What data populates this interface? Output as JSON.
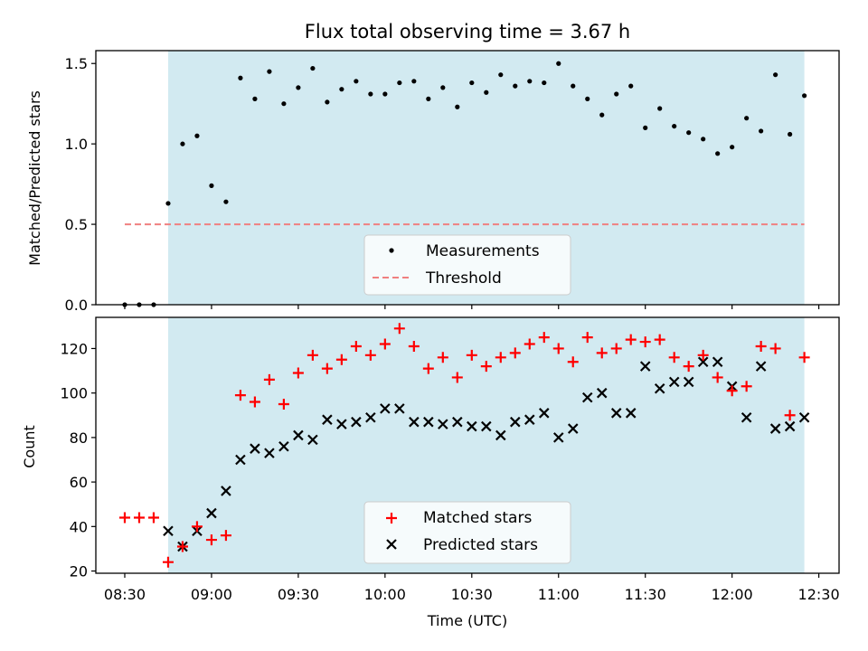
{
  "chart_data": {
    "title": "Flux total observing time = 3.67 h",
    "xlabel": "Time (UTC)",
    "x_ticks": [
      "08:30",
      "09:00",
      "09:30",
      "10:00",
      "10:30",
      "11:00",
      "11:30",
      "12:00",
      "12:30"
    ],
    "x_tick_minutes": [
      510,
      540,
      570,
      600,
      630,
      660,
      690,
      720,
      750
    ],
    "x_range_minutes": [
      500,
      757
    ],
    "shaded_range_minutes": [
      525,
      745
    ],
    "colors": {
      "shade": "#add8e6",
      "threshold": "#f08080",
      "matched": "#ff0000",
      "predicted": "#000000",
      "measurement": "#000000"
    },
    "panels": [
      {
        "type": "scatter",
        "ylabel": "Matched/Predicted stars",
        "ylim": [
          0.0,
          1.58
        ],
        "y_ticks": [
          "0.0",
          "0.5",
          "1.0",
          "1.5"
        ],
        "y_tick_values": [
          0.0,
          0.5,
          1.0,
          1.5
        ],
        "legend": [
          "Measurements",
          "Threshold"
        ],
        "threshold": 0.5,
        "threshold_range_minutes": [
          510,
          745
        ],
        "series": [
          {
            "name": "Measurements",
            "x": [
              510,
              515,
              520,
              525,
              530,
              535,
              540,
              545,
              550,
              555,
              560,
              565,
              570,
              575,
              580,
              585,
              590,
              595,
              600,
              605,
              610,
              615,
              620,
              625,
              630,
              635,
              640,
              645,
              650,
              655,
              660,
              665,
              670,
              675,
              680,
              685,
              690,
              695,
              700,
              705,
              710,
              715,
              720,
              725,
              730,
              735,
              740,
              745
            ],
            "y": [
              0.0,
              0.0,
              0.0,
              0.63,
              1.0,
              1.05,
              0.74,
              0.64,
              1.41,
              1.28,
              1.45,
              1.25,
              1.35,
              1.47,
              1.26,
              1.34,
              1.39,
              1.31,
              1.31,
              1.38,
              1.39,
              1.28,
              1.35,
              1.23,
              1.38,
              1.32,
              1.43,
              1.36,
              1.39,
              1.38,
              1.5,
              1.36,
              1.28,
              1.18,
              1.31,
              1.36,
              1.1,
              1.22,
              1.11,
              1.07,
              1.03,
              0.94,
              0.98,
              1.16,
              1.08,
              1.43,
              1.06,
              1.3
            ]
          }
        ]
      },
      {
        "type": "scatter",
        "ylabel": "Count",
        "ylim": [
          19,
          134
        ],
        "y_ticks": [
          "20",
          "40",
          "60",
          "80",
          "100",
          "120"
        ],
        "y_tick_values": [
          20,
          40,
          60,
          80,
          100,
          120
        ],
        "legend": [
          "Matched stars",
          "Predicted stars"
        ],
        "series": [
          {
            "name": "Matched stars",
            "x": [
              510,
              515,
              520,
              525,
              530,
              535,
              540,
              545,
              550,
              555,
              560,
              565,
              570,
              575,
              580,
              585,
              590,
              595,
              600,
              605,
              610,
              615,
              620,
              625,
              630,
              635,
              640,
              645,
              650,
              655,
              660,
              665,
              670,
              675,
              680,
              685,
              690,
              695,
              700,
              705,
              710,
              715,
              720,
              725,
              730,
              735,
              740,
              745
            ],
            "y": [
              44,
              44,
              44,
              24,
              31,
              40,
              34,
              36,
              99,
              96,
              106,
              95,
              109,
              117,
              111,
              115,
              121,
              117,
              122,
              129,
              121,
              111,
              116,
              107,
              117,
              112,
              116,
              118,
              122,
              125,
              120,
              114,
              125,
              118,
              120,
              124,
              123,
              124,
              116,
              112,
              117,
              107,
              101,
              103,
              121,
              120,
              90,
              116
            ]
          },
          {
            "name": "Predicted stars",
            "x": [
              525,
              530,
              535,
              540,
              545,
              550,
              555,
              560,
              565,
              570,
              575,
              580,
              585,
              590,
              595,
              600,
              605,
              610,
              615,
              620,
              625,
              630,
              635,
              640,
              645,
              650,
              655,
              660,
              665,
              670,
              675,
              680,
              685,
              690,
              695,
              700,
              705,
              710,
              715,
              720,
              725,
              730,
              735,
              740,
              745
            ],
            "y": [
              38,
              31,
              38,
              46,
              56,
              70,
              75,
              73,
              76,
              81,
              79,
              88,
              86,
              87,
              89,
              93,
              93,
              87,
              87,
              86,
              87,
              85,
              85,
              81,
              87,
              88,
              91,
              80,
              84,
              98,
              100,
              91,
              91,
              112,
              102,
              105,
              105,
              114,
              114,
              103,
              89,
              112,
              84,
              85,
              89
            ]
          }
        ]
      }
    ]
  }
}
